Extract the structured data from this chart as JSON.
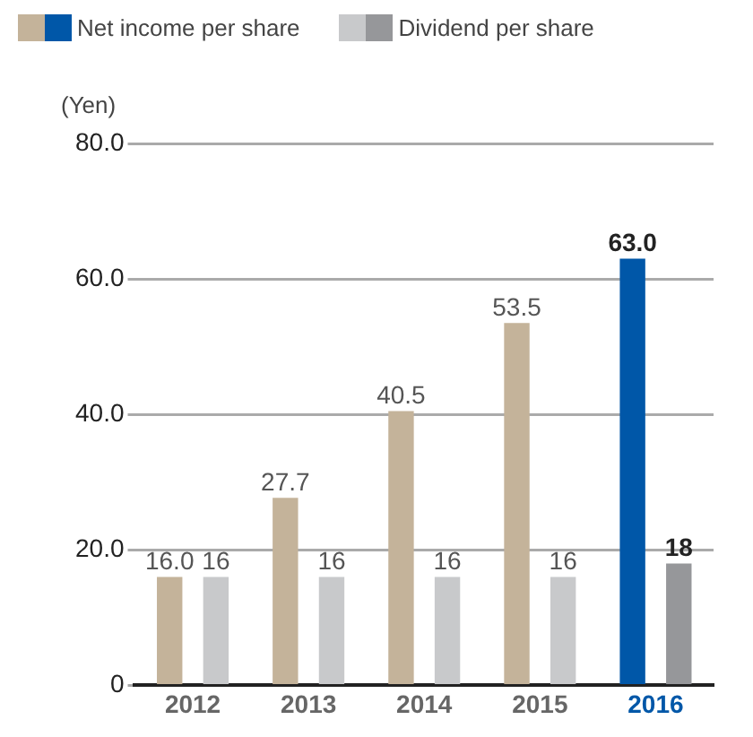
{
  "chart_data": {
    "type": "bar",
    "ylabel": "(Yen)",
    "categories": [
      "2012",
      "2013",
      "2014",
      "2015",
      "2016"
    ],
    "series": [
      {
        "name": "Net income per share",
        "colors": [
          "#c4b39a",
          "#c4b39a",
          "#c4b39a",
          "#c4b39a",
          "#0057a8"
        ],
        "values": [
          16.0,
          27.7,
          40.5,
          53.5,
          63.0
        ],
        "value_labels": [
          "16.0",
          "27.7",
          "40.5",
          "53.5",
          "63.0"
        ]
      },
      {
        "name": "Dividend per share",
        "colors": [
          "#c8c9cb",
          "#c8c9cb",
          "#c8c9cb",
          "#c8c9cb",
          "#96979a"
        ],
        "values": [
          16,
          16,
          16,
          16,
          18
        ],
        "value_labels": [
          "16",
          "16",
          "16",
          "16",
          "18"
        ]
      }
    ],
    "ylim": [
      0,
      80
    ],
    "yticks": [
      0,
      {
        "value": 20,
        "label": "20.0"
      },
      {
        "value": 40,
        "label": "40.0"
      },
      {
        "value": 60,
        "label": "60.0"
      },
      {
        "value": 80,
        "label": "80.0"
      }
    ],
    "grid": "y",
    "legend": "top left"
  }
}
